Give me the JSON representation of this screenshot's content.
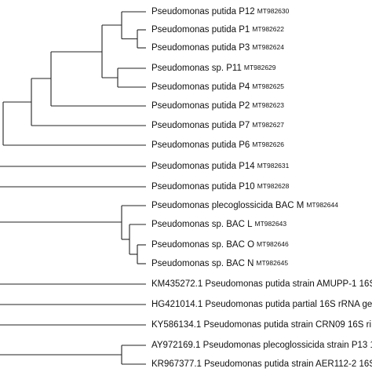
{
  "leaves": [
    {
      "name": "Pseudomonas putida P12",
      "accession": "MT982630"
    },
    {
      "name": "Pseudomonas putida P1",
      "accession": "MT982622"
    },
    {
      "name": "Pseudomonas putida P3",
      "accession": "MT982624"
    },
    {
      "name": "Pseudomonas sp. P11",
      "accession": "MT982629"
    },
    {
      "name": "Pseudomonas putida P4",
      "accession": "MT982625"
    },
    {
      "name": "Pseudomonas putida P2",
      "accession": "MT982623"
    },
    {
      "name": "Pseudomonas putida P7",
      "accession": "MT982627"
    },
    {
      "name": "Pseudomonas putida P6",
      "accession": "MT982626"
    },
    {
      "name": "Pseudomonas putida P14",
      "accession": "MT982631"
    },
    {
      "name": "Pseudomonas putida P10",
      "accession": "MT982628"
    },
    {
      "name": "Pseudomonas plecoglossicida BAC M",
      "accession": "MT982644"
    },
    {
      "name": "Pseudomonas sp. BAC L",
      "accession": "MT982643"
    },
    {
      "name": "Pseudomonas sp. BAC O",
      "accession": "MT982646"
    },
    {
      "name": "Pseudomonas sp. BAC N",
      "accession": "MT982645"
    },
    {
      "name": "KM435272.1 Pseudomonas putida strain AMUPP-1 16S"
    },
    {
      "name": "HG421014.1 Pseudomonas putida partial 16S rRNA ge"
    },
    {
      "name": "KY586134.1 Pseudomonas putida strain CRN09 16S ri"
    },
    {
      "name": "AY972169.1 Pseudomonas plecoglossicida strain P13 1"
    },
    {
      "name": "KR967377.1 Pseudomonas putida strain AER112-2 16S"
    }
  ]
}
